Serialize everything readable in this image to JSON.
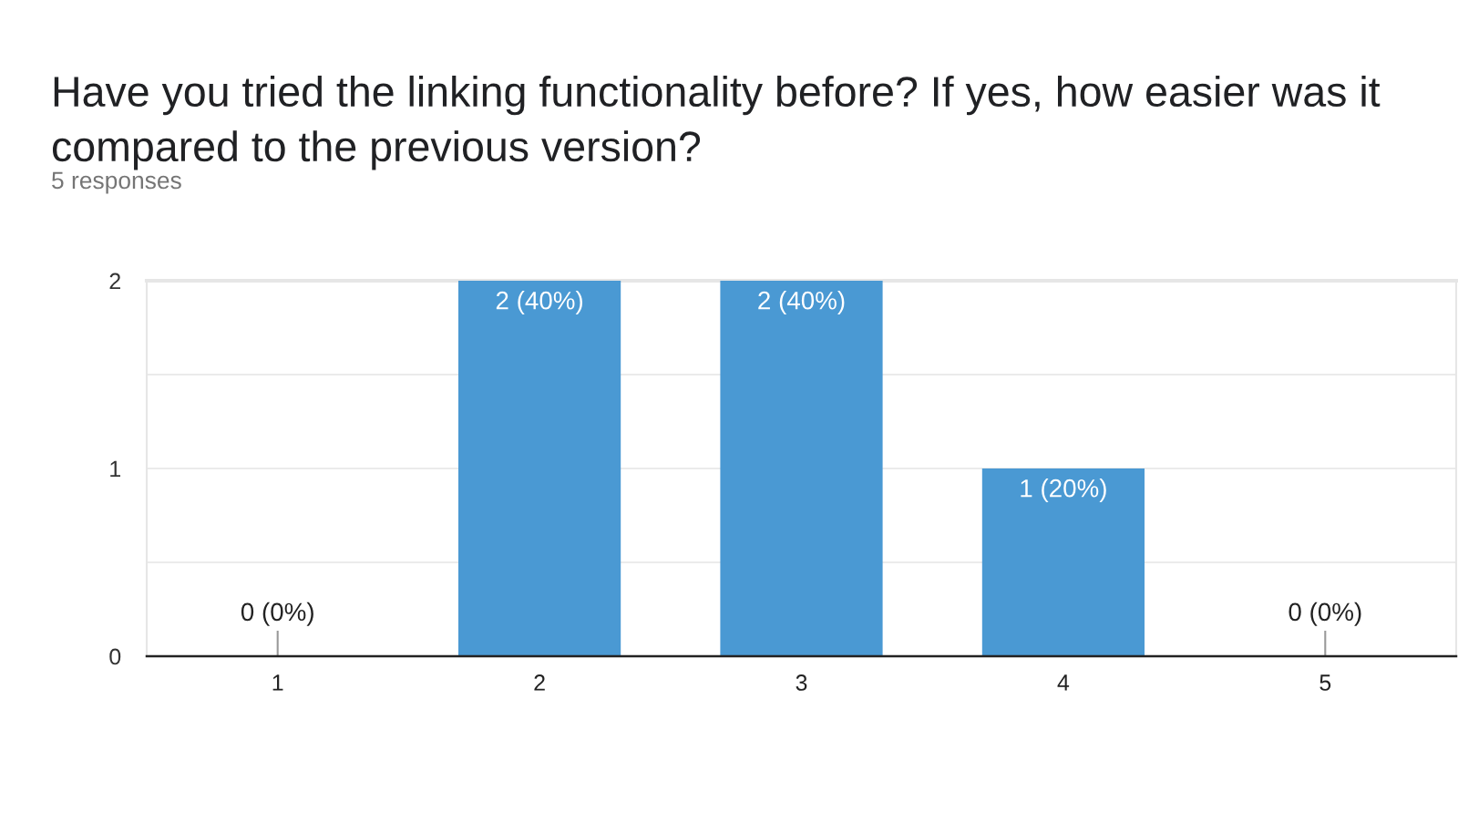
{
  "chart_data": {
    "type": "bar",
    "title": "Have you tried the linking functionality before? If yes, how easier was it compared to the previous version?",
    "subtitle": "5 responses",
    "categories": [
      "1",
      "2",
      "3",
      "4",
      "5"
    ],
    "values": [
      0,
      2,
      2,
      1,
      0
    ],
    "value_labels": [
      "0 (0%)",
      "2 (40%)",
      "2 (40%)",
      "1 (20%)",
      "0 (0%)"
    ],
    "color": "#4a99d3",
    "ylim": [
      0,
      2
    ],
    "yticks": [
      0,
      {
        "value": 0.5,
        "label": null
      },
      1,
      {
        "value": 1.5,
        "label": null
      },
      2
    ],
    "grid": "y"
  }
}
